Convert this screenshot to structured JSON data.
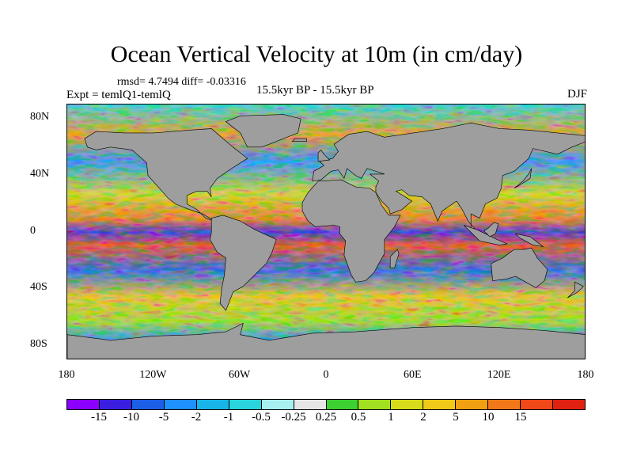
{
  "title": "Ocean Vertical Velocity at 10m (in cm/day)",
  "stats": "rmsd= 4.7494 diff= -0.03316",
  "experiment": "Expt = temlQ1-temlQ",
  "period": "15.5kyr BP - 15.5kyr BP",
  "season": "DJF",
  "map": {
    "land_color": "#9e9e9e",
    "lat_labels": [
      "80N",
      "40N",
      "0",
      "40S",
      "80S"
    ],
    "lat_values": [
      80,
      40,
      0,
      -40,
      -80
    ],
    "lon_labels": [
      "180",
      "120W",
      "60W",
      "0",
      "60E",
      "120E",
      "180"
    ],
    "lon_values": [
      -180,
      -120,
      -60,
      0,
      60,
      120,
      180
    ],
    "lat_range": [
      -90,
      90
    ],
    "lon_range": [
      -180,
      180
    ]
  },
  "colorbar": {
    "colors": [
      "#8b00ff",
      "#3a1fe0",
      "#1c5fe6",
      "#1e90ff",
      "#18b6e8",
      "#2ad4dc",
      "#a8eff0",
      "#e6e6e6",
      "#3cd030",
      "#a0e020",
      "#d6dc1a",
      "#f0c818",
      "#f0a010",
      "#f07818",
      "#f04818",
      "#e02010"
    ],
    "labels": [
      "-15",
      "-10",
      "-5",
      "-2",
      "-1",
      "-0.5",
      "-0.25",
      "0.25",
      "0.5",
      "1",
      "2",
      "5",
      "10",
      "15"
    ]
  }
}
